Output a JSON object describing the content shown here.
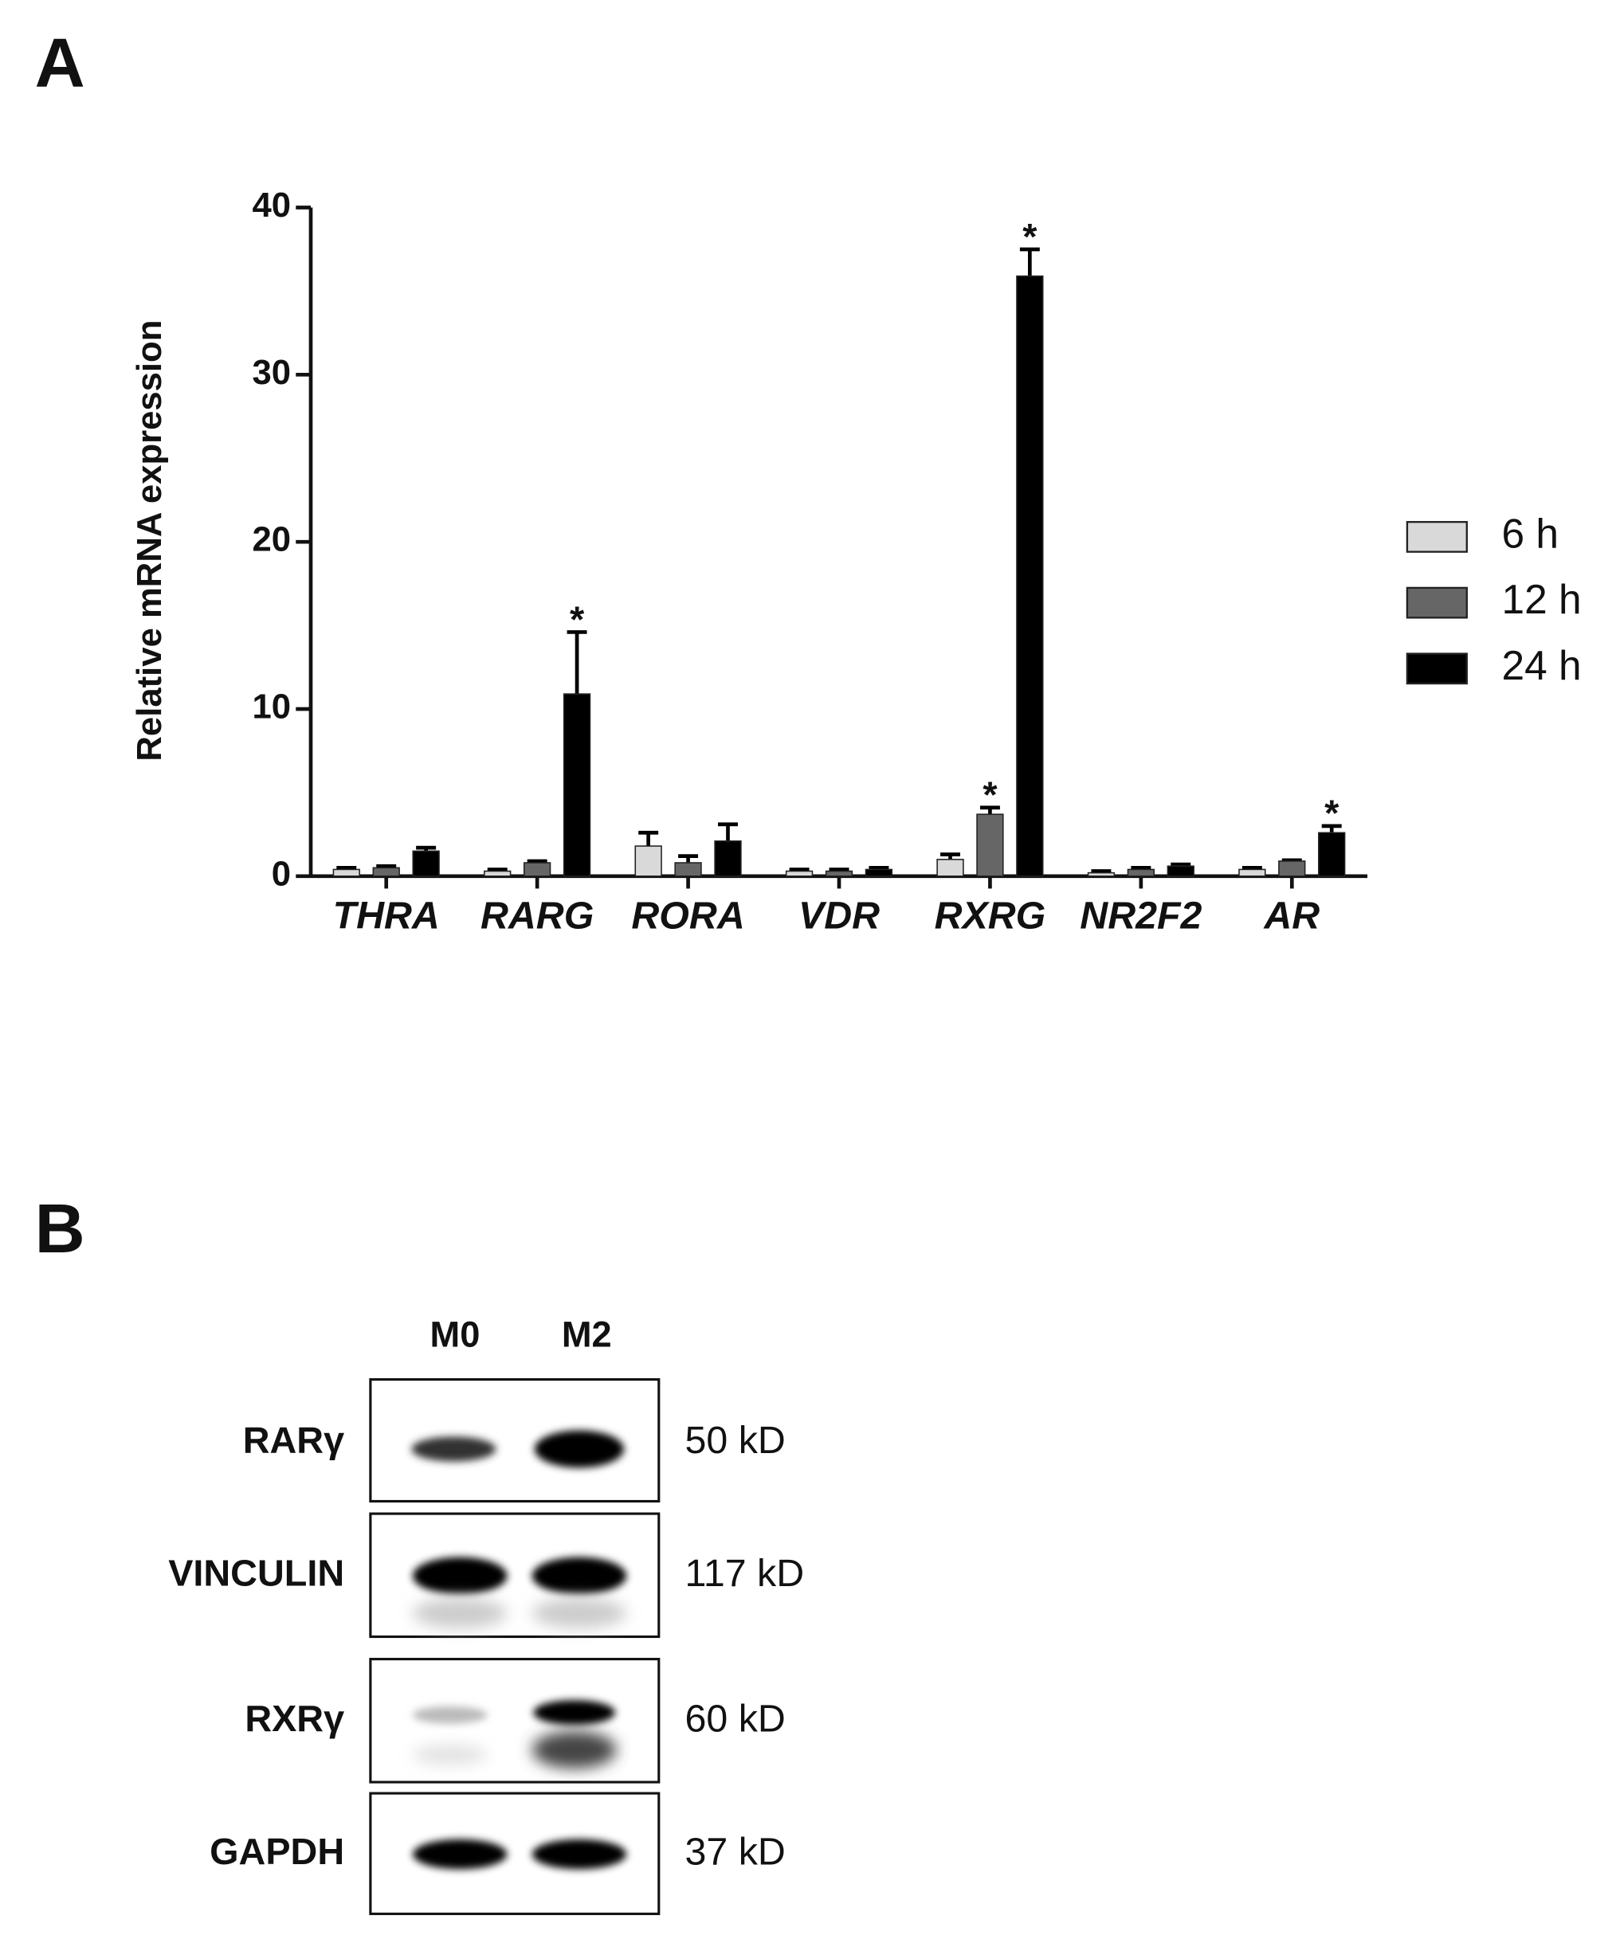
{
  "panel_labels": [
    "A",
    "B"
  ],
  "chart_data": {
    "type": "bar",
    "y_label": "Relative mRNA expression",
    "categories": [
      "THRA",
      "RARG",
      "RORA",
      "VDR",
      "RXRG",
      "NR2F2",
      "AR"
    ],
    "series": [
      {
        "name": "6 h",
        "color": "#d9d9d9",
        "values": [
          0.4,
          0.3,
          1.8,
          0.3,
          1.0,
          0.2,
          0.4
        ],
        "errors": [
          0.1,
          0.1,
          0.8,
          0.1,
          0.3,
          0.1,
          0.1
        ]
      },
      {
        "name": "12 h",
        "color": "#666666",
        "values": [
          0.5,
          0.8,
          0.8,
          0.3,
          3.7,
          0.4,
          0.9
        ],
        "errors": [
          0.1,
          0.1,
          0.4,
          0.1,
          0.4,
          0.1,
          0.05
        ]
      },
      {
        "name": "24 h",
        "color": "#000000",
        "values": [
          1.5,
          10.9,
          2.1,
          0.4,
          35.9,
          0.6,
          2.6
        ],
        "errors": [
          0.2,
          3.7,
          1.0,
          0.1,
          1.6,
          0.1,
          0.4
        ]
      }
    ],
    "annotations": [
      {
        "text": "*",
        "series": 2,
        "index": 1
      },
      {
        "text": "*",
        "series": 1,
        "index": 4
      },
      {
        "text": "*",
        "series": 2,
        "index": 4
      },
      {
        "text": "*",
        "series": 2,
        "index": 6
      }
    ],
    "ylim": [
      0,
      40
    ],
    "yticks": [
      0,
      10,
      20,
      30,
      40
    ],
    "grid": false,
    "legend": "right"
  },
  "blot": {
    "lanes": [
      "M0",
      "M2"
    ],
    "rows": [
      {
        "label": "RARγ",
        "size": "50 kD"
      },
      {
        "label": "VINCULIN",
        "size": "117 kD"
      },
      {
        "label": "RXRγ",
        "size": "60 kD"
      },
      {
        "label": "GAPDH",
        "size": "37 kD"
      }
    ]
  }
}
